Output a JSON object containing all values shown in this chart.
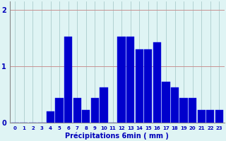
{
  "categories": [
    0,
    1,
    2,
    3,
    4,
    5,
    6,
    7,
    8,
    9,
    10,
    11,
    12,
    13,
    14,
    15,
    16,
    17,
    18,
    19,
    20,
    21,
    22,
    23
  ],
  "values": [
    0,
    0,
    0,
    0,
    0.2,
    0.43,
    1.52,
    0.43,
    0.22,
    0.43,
    0.62,
    0,
    1.52,
    1.52,
    1.3,
    1.3,
    1.42,
    0.72,
    0.62,
    0.43,
    0.43,
    0.22,
    0.22,
    0.22
  ],
  "bar_color": "#0000cc",
  "bar_edge_color": "#1a1aee",
  "background_color": "#dff4f4",
  "grid_color": "#aacccc",
  "text_color": "#0000bb",
  "xlabel": "Précipitations 6min ( mm )",
  "ylim": [
    0,
    2.15
  ],
  "yticks": [
    0,
    1,
    2
  ],
  "xtick_labels": [
    "0",
    "1",
    "2",
    "3",
    "4",
    "5",
    "6",
    "7",
    "8",
    "9",
    "10",
    "",
    "1213141516",
    "",
    "181920212223",
    "",
    "",
    "",
    "",
    "",
    "",
    "",
    "",
    ""
  ]
}
